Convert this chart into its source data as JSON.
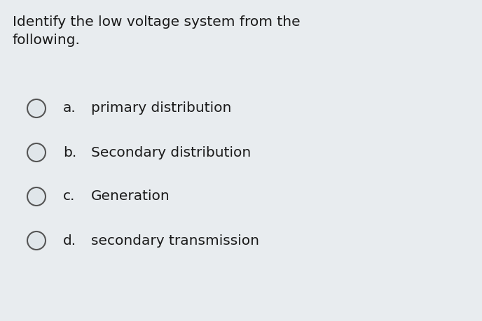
{
  "background_color": "#e8ecef",
  "title_line1": "Identify the low voltage system from the",
  "title_line2": "following.",
  "options": [
    {
      "label": "a.",
      "text": "primary distribution"
    },
    {
      "label": "b.",
      "text": "Secondary distribution"
    },
    {
      "label": "c.",
      "text": "Generation"
    },
    {
      "label": "d.",
      "text": "secondary transmission"
    }
  ],
  "text_color": "#1a1a1a",
  "circle_edge_color": "#555555",
  "circle_face_color": "#e0e6ea",
  "title_fontsize": 14.5,
  "option_fontsize": 14.5,
  "fig_width": 6.88,
  "fig_height": 4.59,
  "dpi": 100
}
